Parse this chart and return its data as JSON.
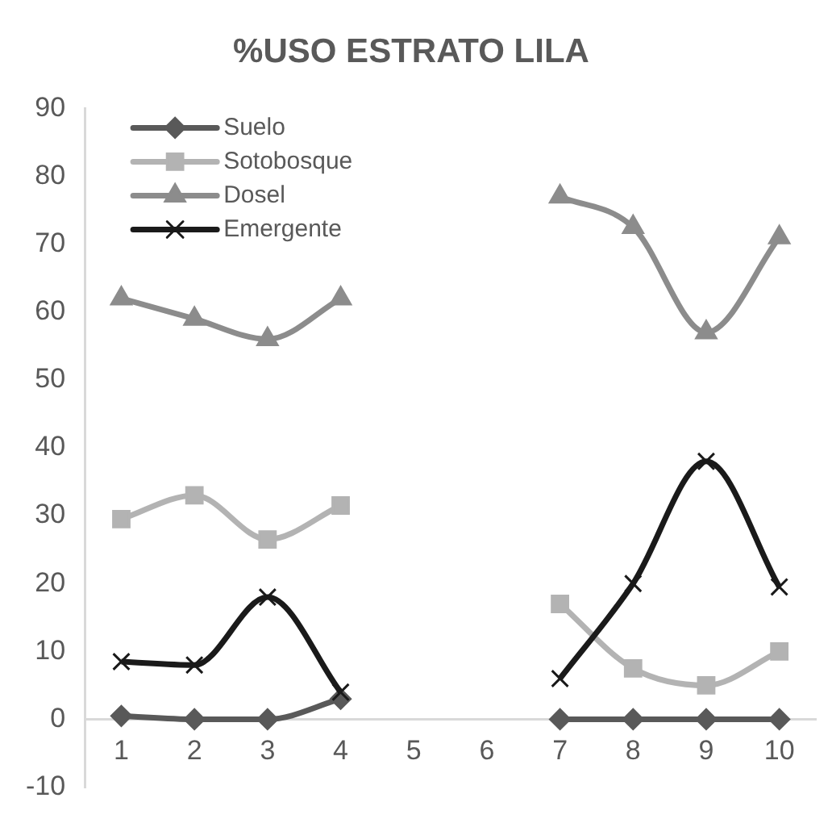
{
  "chart_data": {
    "type": "line",
    "title": "%USO ESTRATO LILA",
    "categories": [
      "1",
      "2",
      "3",
      "4",
      "5",
      "6",
      "7",
      "8",
      "9",
      "10"
    ],
    "series": [
      {
        "name": "Suelo",
        "color": "#595959",
        "marker": "diamond",
        "values": [
          0.5,
          0,
          0,
          3,
          null,
          null,
          0,
          0,
          0,
          0
        ]
      },
      {
        "name": "Sotobosque",
        "color": "#b3b3b3",
        "marker": "square",
        "values": [
          29.5,
          33,
          26.5,
          31.5,
          null,
          null,
          17,
          7.5,
          5,
          10
        ]
      },
      {
        "name": "Dosel",
        "color": "#8c8c8c",
        "marker": "triangle",
        "values": [
          62,
          59,
          56,
          62,
          null,
          null,
          77,
          72.5,
          57,
          71
        ]
      },
      {
        "name": "Emergente",
        "color": "#1a1a1a",
        "marker": "cross",
        "values": [
          8.5,
          8,
          18,
          4,
          null,
          null,
          6,
          20,
          38,
          19.5
        ]
      }
    ],
    "ylim": [
      -10,
      90
    ],
    "yticks": [
      -10,
      0,
      10,
      20,
      30,
      40,
      50,
      60,
      70,
      80,
      90
    ],
    "grid": false,
    "legend": "top left"
  }
}
